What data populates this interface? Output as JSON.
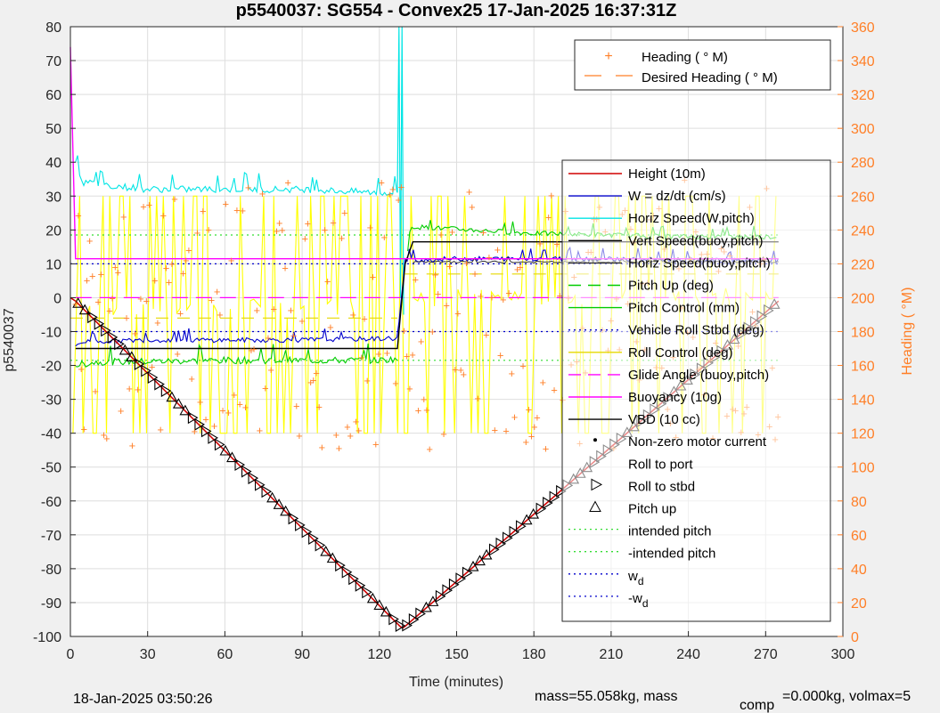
{
  "chart_data": {
    "type": "line",
    "title": "p5540037: SG554 - Convex25 17-Jan-2025 16:37:31Z",
    "xlabel": "Time (minutes)",
    "ylabel": "p5540037",
    "y2label": "Heading (  °M)",
    "xlim": [
      0,
      300
    ],
    "ylim": [
      -100,
      80
    ],
    "y2lim": [
      0,
      360
    ],
    "x_ticks": [
      "0",
      "30",
      "60",
      "90",
      "120",
      "150",
      "180",
      "210",
      "240",
      "270",
      "300"
    ],
    "y_ticks": [
      "80",
      "70",
      "60",
      "50",
      "40",
      "30",
      "20",
      "10",
      "0",
      "-10",
      "-20",
      "-30",
      "-40",
      "-50",
      "-60",
      "-70",
      "-80",
      "-90",
      "-100"
    ],
    "y2_ticks": [
      "360",
      "340",
      "320",
      "300",
      "280",
      "260",
      "240",
      "220",
      "200",
      "180",
      "160",
      "140",
      "120",
      "100",
      "80",
      "60",
      "40",
      "20",
      "0"
    ],
    "grid": true,
    "colors": {
      "axis2": "#ff7f27",
      "height": "#d00000",
      "w": "#0000cc",
      "horiz": "#00e5e5",
      "vert": "#000000",
      "pitch_up": "#00cc00",
      "pitch_control": "#ffff00",
      "roll": "#ffff00",
      "glide": "#ff00ff",
      "buoy": "#ff00ff",
      "vbd": "#000000",
      "intended": "#33dd33",
      "wd": "#0000cc",
      "heading": "#ff7f27"
    },
    "legend_top": {
      "position": "top-right",
      "entries": [
        "Heading (  ° M)",
        "Desired Heading (    ° M)"
      ]
    },
    "legend_main": {
      "position": "right",
      "entries": [
        "Height (10m)",
        "W = dz/dt (cm/s)",
        "Horiz Speed(W,pitch)",
        "Vert Speed(buoy,pitch)",
        "Horiz Speed(buoy,pitch)",
        "Pitch Up (deg)",
        "Pitch Control (mm)",
        "Vehicle Roll Stbd (deg)",
        "Roll Control (deg)",
        "Glide Angle (buoy,pitch)",
        "Buoyancy (10g)",
        "VBD (10 cc)",
        "Non-zero motor current",
        "Roll to port",
        "Roll to stbd",
        "Pitch up",
        "intended pitch",
        "-intended pitch",
        "w",
        "-w"
      ],
      "subscript": "d"
    },
    "series": [
      {
        "name": "Height (10m)",
        "x": [
          0,
          2,
          128,
          129,
          130,
          275
        ],
        "y": [
          0,
          -1,
          -97,
          -97.5,
          -97,
          -1
        ]
      },
      {
        "name": "W = dz/dt (cm/s)",
        "x": [
          2,
          5,
          30,
          60,
          90,
          127,
          130,
          150,
          180,
          210,
          240,
          275
        ],
        "y": [
          -14,
          -13,
          -12.5,
          -12.5,
          -12.5,
          -12,
          11,
          11.5,
          11.5,
          11.5,
          11,
          11
        ]
      },
      {
        "name": "Horiz Speed(W,pitch)",
        "x": [
          2,
          5,
          30,
          60,
          90,
          120,
          127
        ],
        "y": [
          40,
          34,
          32,
          32,
          32,
          31,
          31
        ]
      },
      {
        "name": "Vert Speed(buoy,pitch)",
        "x": [
          2,
          127,
          130,
          133,
          275
        ],
        "y": [
          -15,
          -15,
          10,
          16.5,
          16.5
        ]
      },
      {
        "name": "Horiz Speed(buoy,pitch)",
        "x": [
          133,
          275
        ],
        "y": [
          10.5,
          10.5
        ]
      },
      {
        "name": "Pitch Up (deg)",
        "x": [
          2,
          10,
          60,
          120,
          127,
          132,
          180,
          240,
          275
        ],
        "y": [
          -20,
          -19,
          -18.5,
          -18.5,
          -18,
          21,
          19,
          18,
          18
        ]
      },
      {
        "name": "Buoyancy (10g)",
        "x": [
          0,
          2,
          127,
          275
        ],
        "y": [
          74,
          11.5,
          11.5,
          11.5
        ]
      },
      {
        "name": "intended pitch",
        "x": [
          0,
          275
        ],
        "y": [
          18.5,
          18.5
        ]
      },
      {
        "name": "-intended pitch",
        "x": [
          0,
          275
        ],
        "y": [
          -18.5,
          -18.5
        ]
      },
      {
        "name": "w",
        "x": [
          0,
          275
        ],
        "y": [
          10,
          10
        ]
      },
      {
        "name": "-w",
        "x": [
          0,
          275
        ],
        "y": [
          -10,
          -10
        ]
      }
    ],
    "heading_y2": {
      "x_range": [
        2,
        275
      ],
      "values_range": [
        110,
        270
      ]
    }
  },
  "footer": {
    "timestamp": "18-Jan-2025 03:50:26",
    "mass_text": "mass=55.058kg, mass",
    "comp_sub": "comp",
    "comp_text": "=0.000kg, volmax=5"
  }
}
